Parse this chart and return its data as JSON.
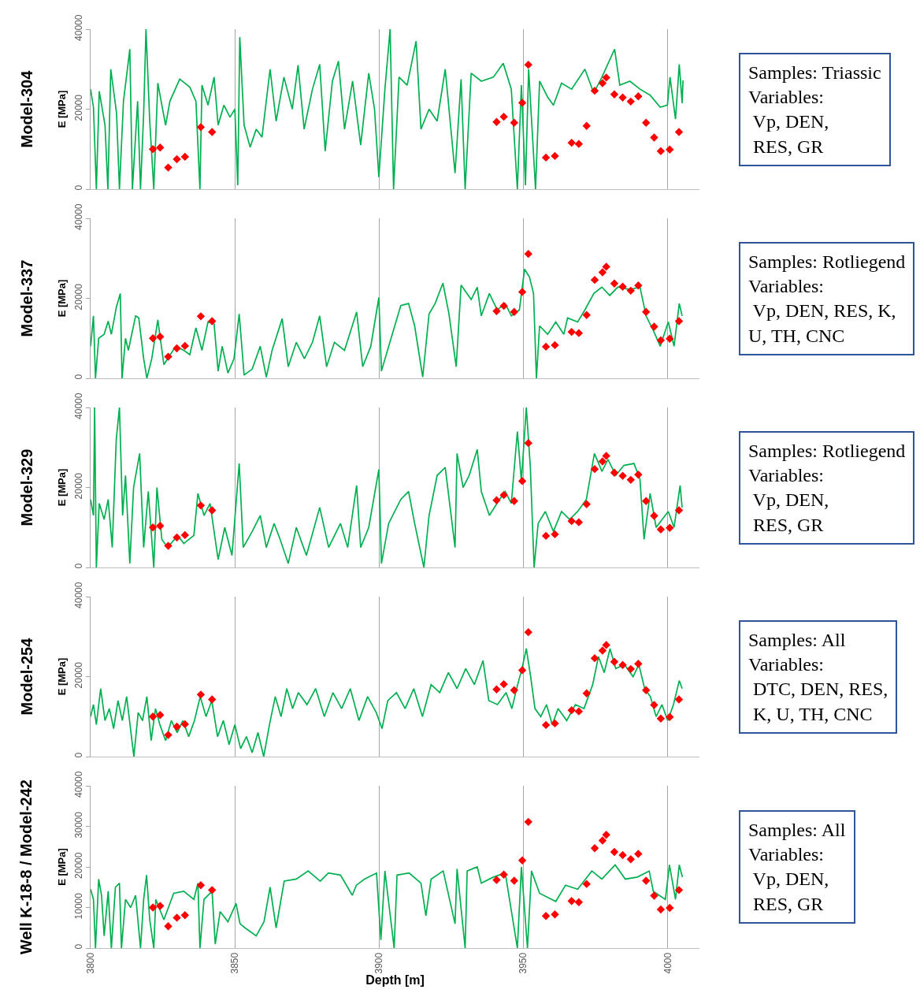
{
  "chart_data": [
    {
      "type": "line",
      "title": "Model-304",
      "ylabel": "E [MPa]",
      "annotations": [
        "Samples: Triassic\nVariables:\n Vp, DEN,\n RES, GR"
      ],
      "xlim": [
        3800,
        4011
      ],
      "ylim": [
        0,
        40000
      ],
      "xticks": [
        3800,
        3850,
        3900,
        3950,
        4000
      ],
      "yticks": [
        0,
        20000,
        40000
      ],
      "grid": "x",
      "tick_labels": "y",
      "series": [
        {
          "type": "line",
          "color": "#00b050",
          "x": [
            3800,
            3801,
            3802,
            3803,
            3805,
            3806,
            3807,
            3809,
            3810,
            3811.4,
            3813.6,
            3814.5,
            3816.3,
            3817.3,
            3818.4,
            3819.2,
            3820.5,
            3821.9,
            3823.3,
            3824.7,
            3826,
            3827.5,
            3830.9,
            3834.4,
            3836.5,
            3837.9,
            3838.6,
            3840.7,
            3842.8,
            3844.2,
            3846.2,
            3848.3,
            3850,
            3851,
            3851.7,
            3853.2,
            3855.3,
            3857.4,
            3859.4,
            3862.2,
            3864.3,
            3867,
            3869.9,
            3871.9,
            3874,
            3876.9,
            3879.4,
            3881.3,
            3883.8,
            3885.9,
            3888,
            3890.8,
            3893.6,
            3896.4,
            3898.4,
            3899.9,
            3902,
            3903.8,
            3905,
            3906.9,
            3909.7,
            3912.8,
            3914.5,
            3917.3,
            3920.1,
            3922.9,
            3926.3,
            3928.4,
            3929.8,
            3931.9,
            3935.4,
            3939.6,
            3943,
            3945.8,
            3947.9,
            3949.3,
            3950.7,
            3951.8,
            3954.2,
            3955.6,
            3958.4,
            3960.4,
            3963.2,
            3966.7,
            3971.3,
            3974.4,
            3977.2,
            3981.6,
            3983.4,
            3986.9,
            3990.4,
            3993.9,
            3997.4,
            3999.9,
            4000.8,
            4002.7,
            4004,
            4005,
            4005.3
          ],
          "values": [
            25000,
            20500,
            0,
            24500,
            16000,
            0,
            30000,
            19000,
            0,
            22000,
            35000,
            0,
            22000,
            0,
            19000,
            40000,
            17000,
            0,
            26500,
            21000,
            16000,
            22000,
            27500,
            25500,
            22000,
            0,
            26000,
            21000,
            28000,
            16000,
            21000,
            18000,
            20000,
            1000,
            38000,
            16000,
            10500,
            15000,
            13000,
            30000,
            17000,
            28000,
            20000,
            31000,
            15000,
            25000,
            31200,
            9500,
            27000,
            32000,
            15000,
            27000,
            11000,
            29000,
            20000,
            3000,
            25000,
            40000,
            0,
            28000,
            26000,
            37000,
            15000,
            20000,
            17000,
            30000,
            4000,
            27500,
            0,
            29000,
            27000,
            28000,
            31500,
            25000,
            0,
            26000,
            1000,
            30000,
            0,
            27000,
            23000,
            21000,
            26500,
            25000,
            30000,
            24000,
            28000,
            35000,
            26000,
            27000,
            25000,
            23500,
            20500,
            21000,
            28000,
            17500,
            31200,
            21500,
            27200
          ],
          "marker": "none"
        },
        {
          "type": "scatter",
          "color": "#ff0000",
          "marker": "diamond",
          "x": [
            3821.6,
            3824.1,
            3826.9,
            3829.9,
            3832.7,
            3838.2,
            3842.1,
            3940.7,
            3943.2,
            3946.8,
            3949.6,
            3951.7,
            3957.8,
            3960.9,
            3966.7,
            3969.2,
            3971.9,
            3974.7,
            3977.4,
            3978.7,
            3981.5,
            3984.4,
            3987.2,
            3989.8,
            3992.5,
            3995.3,
            3997.6,
            4000.7,
            4003.9
          ],
          "values": [
            10000,
            10400,
            5400,
            7500,
            8100,
            15500,
            14300,
            16800,
            18100,
            16600,
            21600,
            31100,
            7900,
            8300,
            11600,
            11300,
            15800,
            24600,
            26500,
            27900,
            23700,
            22900,
            21900,
            23200,
            16600,
            12900,
            9500,
            9900,
            14300
          ]
        }
      ]
    },
    {
      "type": "line",
      "title": "Model-337",
      "ylabel": "E [MPa]",
      "annotations": [
        "Samples: Rotliegend\nVariables:\n Vp, DEN, RES, K,\nU, TH, CNC"
      ],
      "xlim": [
        3800,
        4011
      ],
      "ylim": [
        0,
        40000
      ],
      "xticks": [
        3800,
        3850,
        3900,
        3950,
        4000
      ],
      "yticks": [
        0,
        20000,
        40000
      ],
      "grid": "x",
      "tick_labels": "y",
      "series": [
        {
          "type": "line",
          "color": "#00b050",
          "marker": "none",
          "x": [
            3800,
            3801,
            3801.7,
            3802.8,
            3804.7,
            3806.1,
            3807.2,
            3808.9,
            3810.3,
            3810.9,
            3812.1,
            3813.1,
            3815.6,
            3816.7,
            3818.4,
            3819.5,
            3821.2,
            3823.3,
            3825.4,
            3829.5,
            3832.3,
            3834.4,
            3836.5,
            3838.6,
            3840.7,
            3842.8,
            3844.2,
            3845.6,
            3847.6,
            3849.7,
            3851.5,
            3853.2,
            3856,
            3858.8,
            3860.9,
            3862.9,
            3866.4,
            3868.5,
            3871.3,
            3874.1,
            3876.9,
            3879.4,
            3881.8,
            3884.5,
            3888,
            3892.2,
            3894.3,
            3897.1,
            3899.9,
            3900.8,
            3903.3,
            3907.5,
            3910.2,
            3912.3,
            3915.1,
            3917.3,
            3919.4,
            3922.1,
            3924.2,
            3926.7,
            3928.4,
            3931.9,
            3934,
            3935.4,
            3938.2,
            3940.9,
            3943.7,
            3945.8,
            3948.6,
            3950.4,
            3952.1,
            3953.5,
            3954.5,
            3955.6,
            3958.4,
            3961.2,
            3964,
            3965.3,
            3968.8,
            3971.3,
            3974.4,
            3977.2,
            3979.9,
            3982.7,
            3986.9,
            3990.4,
            3992.5,
            3995.3,
            3997.4,
            4000.2,
            4002.2,
            4004,
            4005
          ],
          "values": [
            8000,
            15600,
            0,
            10000,
            11000,
            14300,
            11000,
            17700,
            21200,
            0,
            10000,
            7000,
            15600,
            15100,
            4900,
            0,
            4900,
            14600,
            3400,
            8000,
            7000,
            5900,
            12600,
            7000,
            14100,
            13600,
            1800,
            8000,
            1300,
            4900,
            16100,
            800,
            2300,
            8000,
            300,
            7000,
            14900,
            2900,
            9000,
            4900,
            9000,
            15600,
            2900,
            9000,
            7000,
            16600,
            2900,
            8000,
            20200,
            1800,
            8000,
            18200,
            18700,
            13100,
            300,
            16100,
            18700,
            23800,
            16100,
            2900,
            23300,
            19700,
            22800,
            15600,
            21200,
            17100,
            18700,
            15600,
            17100,
            27300,
            25300,
            21200,
            0,
            13100,
            11000,
            14100,
            11000,
            15100,
            14100,
            17100,
            21200,
            22800,
            20700,
            22800,
            22200,
            22800,
            15600,
            11500,
            8000,
            14100,
            8000,
            18700,
            15600
          ]
        },
        {
          "type": "scatter",
          "color": "#ff0000",
          "marker": "diamond",
          "x": [
            3821.6,
            3824.1,
            3826.9,
            3829.9,
            3832.7,
            3838.2,
            3842.1,
            3940.7,
            3943.2,
            3946.8,
            3949.6,
            3951.7,
            3957.8,
            3960.9,
            3966.7,
            3969.2,
            3971.9,
            3974.7,
            3977.4,
            3978.7,
            3981.5,
            3984.4,
            3987.2,
            3989.8,
            3992.5,
            3995.3,
            3997.6,
            4000.7,
            4003.9
          ],
          "values": [
            10000,
            10400,
            5400,
            7500,
            8100,
            15500,
            14300,
            16800,
            18100,
            16600,
            21600,
            31100,
            7900,
            8300,
            11600,
            11300,
            15800,
            24600,
            26500,
            27900,
            23700,
            22900,
            21900,
            23200,
            16600,
            12900,
            9500,
            9900,
            14300
          ]
        }
      ]
    },
    {
      "type": "line",
      "title": "Model-329",
      "ylabel": "E [MPa]",
      "annotations": [
        "Samples: Rotliegend\nVariables:\n Vp, DEN,\n RES, GR"
      ],
      "xlim": [
        3800,
        4011
      ],
      "ylim": [
        0,
        40000
      ],
      "xticks": [
        3800,
        3850,
        3900,
        3950,
        4000
      ],
      "yticks": [
        0,
        20000,
        40000
      ],
      "grid": "x",
      "tick_labels": "y",
      "series": [
        {
          "type": "line",
          "color": "#00b050",
          "marker": "none",
          "x": [
            3800,
            3801,
            3801.4,
            3802,
            3803,
            3804.7,
            3806.1,
            3807.5,
            3808.9,
            3810,
            3811.1,
            3812.1,
            3813.6,
            3814.9,
            3817,
            3818.4,
            3820,
            3821.9,
            3823,
            3824.7,
            3826.7,
            3830.2,
            3832.3,
            3835.8,
            3837.2,
            3839.3,
            3841.4,
            3844.2,
            3846.5,
            3849,
            3851.5,
            3852.9,
            3856,
            3858.8,
            3860.9,
            3863.6,
            3865.7,
            3868.5,
            3871.3,
            3874.8,
            3879.4,
            3882.5,
            3886.6,
            3889.1,
            3892.2,
            3893.6,
            3896.4,
            3899.9,
            3900.8,
            3903.3,
            3907.5,
            3910.2,
            3912.3,
            3915.5,
            3917.3,
            3920.1,
            3922.9,
            3926.3,
            3927,
            3929.1,
            3931.2,
            3934,
            3935.4,
            3938.2,
            3941.7,
            3943.7,
            3945.8,
            3947.9,
            3949.3,
            3951,
            3952.4,
            3953.7,
            3955.1,
            3957.6,
            3960.4,
            3963.2,
            3966,
            3968.8,
            3971.8,
            3974.6,
            3977.2,
            3979.3,
            3982,
            3984.8,
            3988.3,
            3990.4,
            3991.8,
            3993.9,
            3996,
            3998.1,
            4000.2,
            4002.2,
            4004.3,
            4005
          ],
          "values": [
            17000,
            13000,
            40000,
            0,
            16000,
            12000,
            17000,
            5000,
            32000,
            40000,
            13000,
            23000,
            1000,
            20000,
            28500,
            5000,
            19000,
            0,
            20000,
            7000,
            5000,
            8000,
            6000,
            8000,
            18500,
            13000,
            16000,
            2000,
            10000,
            3000,
            26000,
            5000,
            9000,
            13000,
            5000,
            11000,
            7000,
            1000,
            10000,
            3000,
            15000,
            5000,
            11000,
            5000,
            20500,
            5000,
            10000,
            24500,
            1000,
            11000,
            17000,
            19000,
            11000,
            0,
            13000,
            23000,
            25000,
            5000,
            28500,
            20000,
            23000,
            29500,
            19000,
            13000,
            17000,
            19000,
            16000,
            34000,
            21500,
            40000,
            25000,
            0,
            11000,
            14000,
            9000,
            14000,
            12000,
            14000,
            17000,
            28500,
            24000,
            27000,
            23000,
            25500,
            26000,
            22000,
            7000,
            18500,
            10000,
            12000,
            14000,
            10000,
            20500,
            15000
          ]
        },
        {
          "type": "scatter",
          "color": "#ff0000",
          "marker": "diamond",
          "x": [
            3821.6,
            3824.1,
            3826.9,
            3829.9,
            3832.7,
            3838.2,
            3842.1,
            3940.7,
            3943.2,
            3946.8,
            3949.6,
            3951.7,
            3957.8,
            3960.9,
            3966.7,
            3969.2,
            3971.9,
            3974.7,
            3977.4,
            3978.7,
            3981.5,
            3984.4,
            3987.2,
            3989.8,
            3992.5,
            3995.3,
            3997.6,
            4000.7,
            4003.9
          ],
          "values": [
            10000,
            10400,
            5400,
            7500,
            8100,
            15500,
            14300,
            16800,
            18100,
            16600,
            21600,
            31100,
            7900,
            8300,
            11600,
            11300,
            15800,
            24600,
            26500,
            27900,
            23700,
            22900,
            21900,
            23200,
            16600,
            12900,
            9500,
            9900,
            14300
          ]
        }
      ]
    },
    {
      "type": "line",
      "title": "Model-254",
      "ylabel": "E [MPa]",
      "annotations": [
        "Samples: All\nVariables:\n DTC, DEN, RES,\n K, U, TH, CNC"
      ],
      "xlim": [
        3800,
        4011
      ],
      "ylim": [
        0,
        40000
      ],
      "xticks": [
        3800,
        3850,
        3900,
        3950,
        4000
      ],
      "yticks": [
        0,
        20000,
        40000
      ],
      "grid": "x",
      "tick_labels": "y",
      "series": [
        {
          "type": "line",
          "color": "#00b050",
          "marker": "none",
          "x": [
            3800,
            3801,
            3802,
            3803.5,
            3805,
            3806.5,
            3808,
            3809.5,
            3811,
            3812.5,
            3814,
            3815,
            3816.5,
            3818,
            3819.5,
            3821,
            3822.5,
            3824,
            3826,
            3828,
            3830,
            3832,
            3834,
            3836,
            3838,
            3840,
            3842,
            3844,
            3846,
            3848,
            3850,
            3852,
            3854,
            3856,
            3858,
            3860,
            3862,
            3864,
            3866,
            3868,
            3870,
            3872,
            3875,
            3878,
            3881,
            3884,
            3887,
            3890,
            3893,
            3896,
            3899,
            3901,
            3903,
            3906,
            3909,
            3912,
            3915,
            3918,
            3921,
            3924,
            3927,
            3930,
            3933,
            3936,
            3938,
            3941,
            3944,
            3946,
            3948,
            3949.5,
            3951,
            3952.5,
            3954,
            3956,
            3958,
            3960,
            3962,
            3965,
            3968,
            3971,
            3974,
            3976,
            3978,
            3980,
            3982,
            3985,
            3988,
            3990,
            3992,
            3994,
            3996,
            3998,
            4000,
            4002,
            4004,
            4005
          ],
          "values": [
            10000,
            13000,
            8000,
            17000,
            9000,
            12000,
            7000,
            14000,
            9000,
            15000,
            6000,
            0,
            11000,
            9000,
            15000,
            4000,
            12000,
            8000,
            4000,
            9000,
            6000,
            9000,
            5000,
            9000,
            15000,
            10000,
            14000,
            5000,
            9000,
            3000,
            8000,
            2000,
            5000,
            1000,
            6000,
            0,
            8000,
            15000,
            10000,
            17000,
            12000,
            16000,
            13000,
            17000,
            10000,
            16000,
            12000,
            17000,
            9000,
            15000,
            11000,
            7000,
            14000,
            16000,
            12000,
            17000,
            10000,
            18000,
            16000,
            21000,
            17000,
            22000,
            18000,
            24000,
            14000,
            13000,
            16000,
            12000,
            18000,
            22000,
            27000,
            20000,
            12000,
            10000,
            13000,
            8000,
            12000,
            9000,
            13000,
            12000,
            18000,
            25000,
            21000,
            27000,
            22000,
            23000,
            20000,
            23000,
            17000,
            15000,
            10000,
            13000,
            9000,
            13000,
            19000,
            17000
          ]
        },
        {
          "type": "scatter",
          "color": "#ff0000",
          "marker": "diamond",
          "x": [
            3821.6,
            3824.1,
            3826.9,
            3829.9,
            3832.7,
            3838.2,
            3842.1,
            3940.7,
            3943.2,
            3946.8,
            3949.6,
            3951.7,
            3957.8,
            3960.9,
            3966.7,
            3969.2,
            3971.9,
            3974.7,
            3977.4,
            3978.7,
            3981.5,
            3984.4,
            3987.2,
            3989.8,
            3992.5,
            3995.3,
            3997.6,
            4000.7,
            4003.9
          ],
          "values": [
            10000,
            10400,
            5400,
            7500,
            8100,
            15500,
            14300,
            16800,
            18100,
            16600,
            21600,
            31100,
            7900,
            8300,
            11600,
            11300,
            15800,
            24600,
            26500,
            27900,
            23700,
            22900,
            21900,
            23200,
            16600,
            12900,
            9500,
            9900,
            14300
          ]
        }
      ]
    },
    {
      "type": "line",
      "title": "Well K-18-8 / Model-242",
      "ylabel": "E [MPa]",
      "xlabel": "Depth [m]",
      "annotations": [
        "Samples: All\nVariables:\n Vp, DEN,\n RES, GR"
      ],
      "xlim": [
        3800,
        4011
      ],
      "ylim": [
        0,
        40000
      ],
      "xticks": [
        3800,
        3850,
        3900,
        3950,
        4000
      ],
      "yticks": [
        0,
        10000,
        20000,
        30000,
        40000
      ],
      "grid": "x",
      "series": [
        {
          "type": "line",
          "color": "#00b050",
          "marker": "none",
          "x": [
            3800,
            3801,
            3801.7,
            3802.8,
            3803.8,
            3804.7,
            3806.1,
            3807.2,
            3808.6,
            3810,
            3810.7,
            3812.1,
            3813.9,
            3815.6,
            3817.3,
            3818.4,
            3819.4,
            3820.5,
            3821.9,
            3822.6,
            3825.4,
            3828.8,
            3832.3,
            3835.8,
            3837.2,
            3837.9,
            3839.3,
            3842.1,
            3843.2,
            3844.9,
            3847.6,
            3850.4,
            3851.8,
            3853.5,
            3857.4,
            3860.1,
            3862.2,
            3864.3,
            3867.1,
            3871.3,
            3875.4,
            3879.6,
            3882.4,
            3886.6,
            3890.7,
            3892.1,
            3894.9,
            3899.1,
            3900.6,
            3902,
            3905.2,
            3906.2,
            3910.4,
            3914.5,
            3916.2,
            3918,
            3922.2,
            3926.3,
            3927,
            3929.8,
            3930.5,
            3934,
            3935.4,
            3939.6,
            3943.7,
            3947.9,
            3949.3,
            3951.4,
            3952.8,
            3955.6,
            3961.2,
            3964.6,
            3968.8,
            3973.7,
            3977.2,
            3981.8,
            3985.3,
            3989.5,
            3993.6,
            3995,
            3999.2,
            4000.6,
            4002.7,
            4004,
            4005.1
          ],
          "values": [
            14500,
            12000,
            0,
            17000,
            13000,
            3000,
            14000,
            0,
            15000,
            16000,
            0,
            12000,
            10000,
            13000,
            0,
            12000,
            18000,
            7000,
            0,
            12000,
            7000,
            13500,
            14000,
            12000,
            16000,
            0,
            12000,
            14000,
            1000,
            9000,
            6500,
            11000,
            6000,
            5000,
            3000,
            6500,
            15000,
            5000,
            16500,
            17000,
            19000,
            16500,
            18500,
            18000,
            13000,
            15500,
            17000,
            18500,
            2000,
            19000,
            0,
            18000,
            18500,
            16000,
            8000,
            17000,
            19000,
            6000,
            19500,
            0,
            19000,
            20000,
            16000,
            17500,
            18500,
            0,
            20000,
            0,
            19000,
            13500,
            11500,
            15500,
            14500,
            19000,
            17000,
            20500,
            17000,
            17500,
            19000,
            14000,
            12000,
            20500,
            12000,
            20500,
            17500
          ]
        },
        {
          "type": "scatter",
          "color": "#ff0000",
          "marker": "diamond",
          "x": [
            3821.6,
            3824.1,
            3826.9,
            3829.9,
            3832.7,
            3838.2,
            3842.1,
            3940.7,
            3943.2,
            3946.8,
            3949.6,
            3951.7,
            3957.8,
            3960.9,
            3966.7,
            3969.2,
            3971.9,
            3974.7,
            3977.4,
            3978.7,
            3981.5,
            3984.4,
            3987.2,
            3989.8,
            3992.5,
            3995.3,
            3997.6,
            4000.7,
            4003.9
          ],
          "values": [
            10000,
            10400,
            5400,
            7500,
            8100,
            15500,
            14300,
            16800,
            18100,
            16600,
            21600,
            31100,
            7900,
            8300,
            11600,
            11300,
            15800,
            24600,
            26500,
            27900,
            23700,
            22900,
            21900,
            23200,
            16600,
            12900,
            9500,
            9900,
            14300
          ]
        }
      ]
    }
  ]
}
